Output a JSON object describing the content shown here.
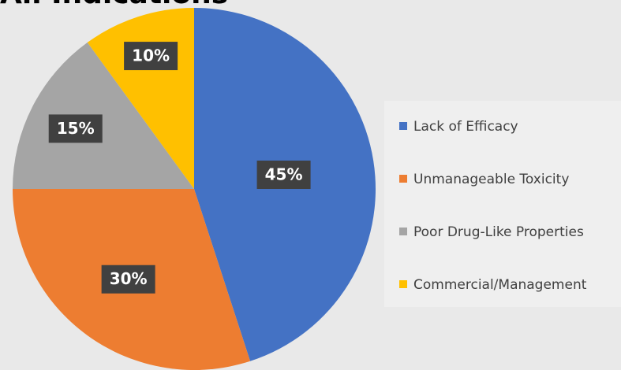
{
  "chart_data": {
    "type": "pie",
    "title": "All Indications",
    "categories": [
      "Lack of Efficacy",
      "Unmanageable Toxicity",
      "Poor Drug-Like Properties",
      "Commercial/Management"
    ],
    "values": [
      45,
      30,
      15,
      10
    ],
    "value_labels": [
      "45%",
      "30%",
      "15%",
      "10%"
    ],
    "colors": [
      "#4472c4",
      "#ed7d31",
      "#a5a5a5",
      "#ffc000"
    ],
    "legend": "right"
  }
}
